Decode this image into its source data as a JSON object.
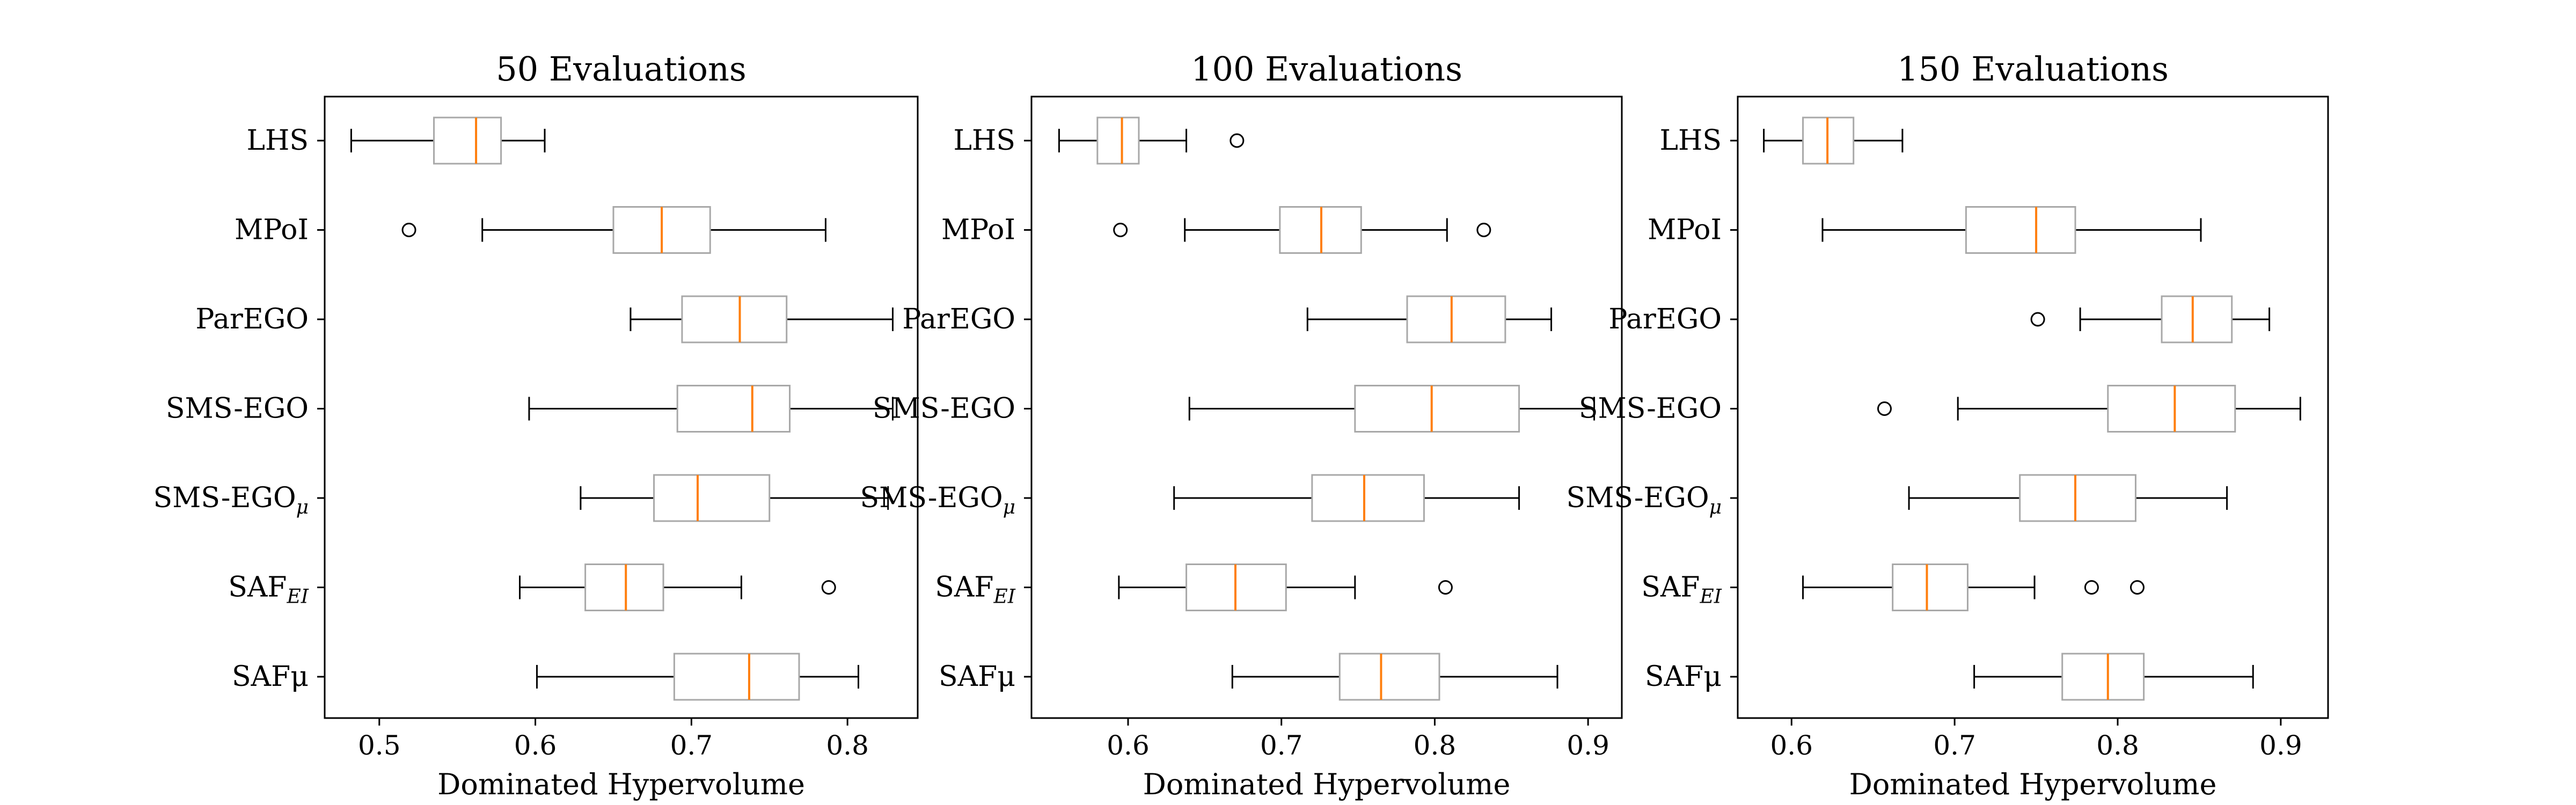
{
  "chart_data": [
    {
      "type": "box",
      "title": "50 Evaluations",
      "xlabel": "Dominated Hypervolume",
      "xlim": [
        0.465,
        0.845
      ],
      "xticks": [
        "0.5",
        "0.6",
        "0.7",
        "0.8"
      ],
      "series": [
        {
          "label": "LHS",
          "whislo": 0.482,
          "q1": 0.535,
          "med": 0.562,
          "q3": 0.578,
          "whishi": 0.606,
          "fliers": []
        },
        {
          "label": "MPoI",
          "whislo": 0.566,
          "q1": 0.65,
          "med": 0.681,
          "q3": 0.712,
          "whishi": 0.786,
          "fliers": [
            0.519
          ]
        },
        {
          "label": "ParEGO",
          "whislo": 0.661,
          "q1": 0.694,
          "med": 0.731,
          "q3": 0.761,
          "whishi": 0.829,
          "fliers": []
        },
        {
          "label": "SMS-EGO",
          "whislo": 0.596,
          "q1": 0.691,
          "med": 0.739,
          "q3": 0.763,
          "whishi": 0.829,
          "fliers": []
        },
        {
          "label": "SMS-EGO",
          "sub": "μ",
          "whislo": 0.629,
          "q1": 0.676,
          "med": 0.704,
          "q3": 0.75,
          "whishi": 0.826,
          "fliers": []
        },
        {
          "label": "SAF",
          "sub": "EI",
          "whislo": 0.59,
          "q1": 0.632,
          "med": 0.658,
          "q3": 0.682,
          "whishi": 0.732,
          "fliers": [
            0.788
          ]
        },
        {
          "label": "SAFμ",
          "whislo": 0.601,
          "q1": 0.689,
          "med": 0.737,
          "q3": 0.769,
          "whishi": 0.807,
          "fliers": []
        }
      ]
    },
    {
      "type": "box",
      "title": "100 Evaluations",
      "xlabel": "Dominated Hypervolume",
      "xlim": [
        0.537,
        0.922
      ],
      "xticks": [
        "0.6",
        "0.7",
        "0.8",
        "0.9"
      ],
      "series": [
        {
          "label": "LHS",
          "whislo": 0.555,
          "q1": 0.58,
          "med": 0.596,
          "q3": 0.607,
          "whishi": 0.638,
          "fliers": [
            0.671
          ]
        },
        {
          "label": "MPoI",
          "whislo": 0.637,
          "q1": 0.699,
          "med": 0.726,
          "q3": 0.752,
          "whishi": 0.808,
          "fliers": [
            0.595,
            0.832
          ]
        },
        {
          "label": "ParEGO",
          "whislo": 0.717,
          "q1": 0.782,
          "med": 0.811,
          "q3": 0.846,
          "whishi": 0.876,
          "fliers": []
        },
        {
          "label": "SMS-EGO",
          "whislo": 0.64,
          "q1": 0.748,
          "med": 0.798,
          "q3": 0.855,
          "whishi": 0.904,
          "fliers": []
        },
        {
          "label": "SMS-EGO",
          "sub": "μ",
          "whislo": 0.63,
          "q1": 0.72,
          "med": 0.754,
          "q3": 0.793,
          "whishi": 0.855,
          "fliers": []
        },
        {
          "label": "SAF",
          "sub": "EI",
          "whislo": 0.594,
          "q1": 0.638,
          "med": 0.67,
          "q3": 0.703,
          "whishi": 0.748,
          "fliers": [
            0.807
          ]
        },
        {
          "label": "SAFμ",
          "whislo": 0.668,
          "q1": 0.738,
          "med": 0.765,
          "q3": 0.803,
          "whishi": 0.88,
          "fliers": []
        }
      ]
    },
    {
      "type": "box",
      "title": "150 Evaluations",
      "xlabel": "Dominated Hypervolume",
      "xlim": [
        0.567,
        0.929
      ],
      "xticks": [
        "0.6",
        "0.7",
        "0.8",
        "0.9"
      ],
      "series": [
        {
          "label": "LHS",
          "whislo": 0.583,
          "q1": 0.607,
          "med": 0.622,
          "q3": 0.638,
          "whishi": 0.668,
          "fliers": []
        },
        {
          "label": "MPoI",
          "whislo": 0.619,
          "q1": 0.707,
          "med": 0.75,
          "q3": 0.774,
          "whishi": 0.851,
          "fliers": []
        },
        {
          "label": "ParEGO",
          "whislo": 0.777,
          "q1": 0.827,
          "med": 0.846,
          "q3": 0.87,
          "whishi": 0.893,
          "fliers": [
            0.751
          ]
        },
        {
          "label": "SMS-EGO",
          "whislo": 0.702,
          "q1": 0.794,
          "med": 0.835,
          "q3": 0.872,
          "whishi": 0.912,
          "fliers": [
            0.657
          ]
        },
        {
          "label": "SMS-EGO",
          "sub": "μ",
          "whislo": 0.672,
          "q1": 0.74,
          "med": 0.774,
          "q3": 0.811,
          "whishi": 0.867,
          "fliers": []
        },
        {
          "label": "SAF",
          "sub": "EI",
          "whislo": 0.607,
          "q1": 0.662,
          "med": 0.683,
          "q3": 0.708,
          "whishi": 0.749,
          "fliers": [
            0.784,
            0.812
          ]
        },
        {
          "label": "SAFμ",
          "whislo": 0.712,
          "q1": 0.766,
          "med": 0.794,
          "q3": 0.816,
          "whishi": 0.883,
          "fliers": []
        }
      ]
    }
  ],
  "colors": {
    "box_edge": "#a8a8a8",
    "median": "#ff7f0e",
    "whisker": "#000000",
    "axes": "#000000"
  }
}
